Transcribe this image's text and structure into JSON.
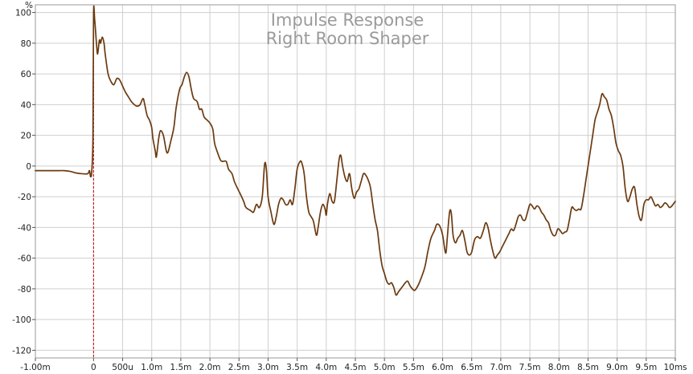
{
  "chart_data": {
    "type": "line",
    "title": "Impulse Response",
    "subtitle": "Right  Room  Shaper",
    "ylabel": "%",
    "xlabel": "",
    "xlim": [
      -1.0,
      10.0
    ],
    "ylim": [
      -125,
      105
    ],
    "grid": true,
    "x_ticks": [
      {
        "v": -1.0,
        "label": "-1.00m"
      },
      {
        "v": 0.0,
        "label": "0"
      },
      {
        "v": 0.5,
        "label": "500u"
      },
      {
        "v": 1.0,
        "label": "1.0m"
      },
      {
        "v": 1.5,
        "label": "1.5m"
      },
      {
        "v": 2.0,
        "label": "2.0m"
      },
      {
        "v": 2.5,
        "label": "2.5m"
      },
      {
        "v": 3.0,
        "label": "3.0m"
      },
      {
        "v": 3.5,
        "label": "3.5m"
      },
      {
        "v": 4.0,
        "label": "4.0m"
      },
      {
        "v": 4.5,
        "label": "4.5m"
      },
      {
        "v": 5.0,
        "label": "5.0m"
      },
      {
        "v": 5.5,
        "label": "5.5m"
      },
      {
        "v": 6.0,
        "label": "6.0m"
      },
      {
        "v": 6.5,
        "label": "6.5m"
      },
      {
        "v": 7.0,
        "label": "7.0m"
      },
      {
        "v": 7.5,
        "label": "7.5m"
      },
      {
        "v": 8.0,
        "label": "8.0m"
      },
      {
        "v": 8.5,
        "label": "8.5m"
      },
      {
        "v": 9.0,
        "label": "9.0m"
      },
      {
        "v": 9.5,
        "label": "9.5m"
      },
      {
        "v": 10.0,
        "label": "10ms"
      }
    ],
    "y_ticks": [
      {
        "v": 100,
        "label": "100"
      },
      {
        "v": 80,
        "label": "80"
      },
      {
        "v": 60,
        "label": "60"
      },
      {
        "v": 40,
        "label": "40"
      },
      {
        "v": 20,
        "label": "20"
      },
      {
        "v": 0,
        "label": "0"
      },
      {
        "v": -20,
        "label": "-20"
      },
      {
        "v": -40,
        "label": "-40"
      },
      {
        "v": -60,
        "label": "-60"
      },
      {
        "v": -80,
        "label": "-80"
      },
      {
        "v": -100,
        "label": "-100"
      },
      {
        "v": -120,
        "label": "-120"
      }
    ],
    "marker_x": 0.0,
    "colors": {
      "line": "#6b3a10",
      "marker": "#cc0000",
      "grid": "#cfcfcf",
      "title": "#9a9a9a"
    },
    "series": [
      {
        "points": [
          [
            -1.0,
            -3
          ],
          [
            -0.8,
            -3
          ],
          [
            -0.6,
            -3
          ],
          [
            -0.5,
            -3
          ],
          [
            -0.4,
            -3.5
          ],
          [
            -0.3,
            -4.5
          ],
          [
            -0.2,
            -5
          ],
          [
            -0.1,
            -5
          ],
          [
            -0.07,
            -3
          ],
          [
            -0.05,
            -7
          ],
          [
            -0.03,
            -3
          ],
          [
            -0.01,
            20
          ],
          [
            0.0,
            99
          ],
          [
            0.02,
            95
          ],
          [
            0.05,
            80
          ],
          [
            0.07,
            73
          ],
          [
            0.1,
            82
          ],
          [
            0.12,
            80
          ],
          [
            0.15,
            84
          ],
          [
            0.18,
            80
          ],
          [
            0.2,
            73
          ],
          [
            0.25,
            60
          ],
          [
            0.3,
            55
          ],
          [
            0.35,
            53
          ],
          [
            0.4,
            57
          ],
          [
            0.45,
            56
          ],
          [
            0.5,
            52
          ],
          [
            0.55,
            48
          ],
          [
            0.6,
            45
          ],
          [
            0.65,
            42
          ],
          [
            0.7,
            40
          ],
          [
            0.75,
            39
          ],
          [
            0.8,
            40
          ],
          [
            0.85,
            44
          ],
          [
            0.88,
            40
          ],
          [
            0.92,
            33
          ],
          [
            0.96,
            30
          ],
          [
            1.0,
            25
          ],
          [
            1.02,
            18
          ],
          [
            1.06,
            10
          ],
          [
            1.08,
            6
          ],
          [
            1.12,
            18
          ],
          [
            1.15,
            23
          ],
          [
            1.2,
            20
          ],
          [
            1.25,
            10
          ],
          [
            1.28,
            9
          ],
          [
            1.32,
            15
          ],
          [
            1.38,
            25
          ],
          [
            1.42,
            38
          ],
          [
            1.48,
            50
          ],
          [
            1.52,
            53
          ],
          [
            1.56,
            58
          ],
          [
            1.6,
            61
          ],
          [
            1.64,
            58
          ],
          [
            1.68,
            50
          ],
          [
            1.72,
            44
          ],
          [
            1.78,
            42
          ],
          [
            1.82,
            37
          ],
          [
            1.86,
            37
          ],
          [
            1.9,
            32
          ],
          [
            1.95,
            30
          ],
          [
            2.0,
            28
          ],
          [
            2.05,
            24
          ],
          [
            2.08,
            15
          ],
          [
            2.12,
            10
          ],
          [
            2.18,
            4
          ],
          [
            2.22,
            3
          ],
          [
            2.28,
            3
          ],
          [
            2.32,
            -2
          ],
          [
            2.38,
            -5
          ],
          [
            2.42,
            -10
          ],
          [
            2.48,
            -15
          ],
          [
            2.52,
            -18
          ],
          [
            2.58,
            -23
          ],
          [
            2.62,
            -27
          ],
          [
            2.7,
            -29
          ],
          [
            2.75,
            -30
          ],
          [
            2.8,
            -25
          ],
          [
            2.85,
            -27
          ],
          [
            2.9,
            -20
          ],
          [
            2.94,
            1
          ],
          [
            2.97,
            -2
          ],
          [
            3.0,
            -20
          ],
          [
            3.05,
            -30
          ],
          [
            3.1,
            -38
          ],
          [
            3.14,
            -33
          ],
          [
            3.18,
            -25
          ],
          [
            3.22,
            -21
          ],
          [
            3.26,
            -22
          ],
          [
            3.3,
            -25
          ],
          [
            3.34,
            -25
          ],
          [
            3.38,
            -22
          ],
          [
            3.42,
            -25
          ],
          [
            3.46,
            -15
          ],
          [
            3.5,
            -2
          ],
          [
            3.55,
            3
          ],
          [
            3.58,
            2
          ],
          [
            3.62,
            -5
          ],
          [
            3.66,
            -20
          ],
          [
            3.7,
            -30
          ],
          [
            3.74,
            -33
          ],
          [
            3.78,
            -36
          ],
          [
            3.83,
            -45
          ],
          [
            3.86,
            -40
          ],
          [
            3.9,
            -30
          ],
          [
            3.94,
            -25
          ],
          [
            3.98,
            -28
          ],
          [
            4.0,
            -32
          ],
          [
            4.02,
            -25
          ],
          [
            4.06,
            -18
          ],
          [
            4.1,
            -23
          ],
          [
            4.14,
            -23
          ],
          [
            4.18,
            -10
          ],
          [
            4.22,
            4
          ],
          [
            4.25,
            7
          ],
          [
            4.28,
            0
          ],
          [
            4.32,
            -7
          ],
          [
            4.36,
            -10
          ],
          [
            4.4,
            -5
          ],
          [
            4.44,
            -15
          ],
          [
            4.48,
            -21
          ],
          [
            4.52,
            -17
          ],
          [
            4.56,
            -15
          ],
          [
            4.6,
            -10
          ],
          [
            4.64,
            -5
          ],
          [
            4.68,
            -6
          ],
          [
            4.72,
            -9
          ],
          [
            4.76,
            -14
          ],
          [
            4.8,
            -25
          ],
          [
            4.84,
            -35
          ],
          [
            4.88,
            -42
          ],
          [
            4.92,
            -55
          ],
          [
            4.96,
            -65
          ],
          [
            5.0,
            -70
          ],
          [
            5.04,
            -75
          ],
          [
            5.08,
            -77
          ],
          [
            5.12,
            -76
          ],
          [
            5.16,
            -79
          ],
          [
            5.2,
            -84
          ],
          [
            5.24,
            -82
          ],
          [
            5.28,
            -80
          ],
          [
            5.32,
            -78
          ],
          [
            5.36,
            -76
          ],
          [
            5.4,
            -75
          ],
          [
            5.44,
            -78
          ],
          [
            5.48,
            -80
          ],
          [
            5.52,
            -81
          ],
          [
            5.56,
            -79
          ],
          [
            5.6,
            -76
          ],
          [
            5.66,
            -70
          ],
          [
            5.7,
            -65
          ],
          [
            5.75,
            -55
          ],
          [
            5.8,
            -47
          ],
          [
            5.86,
            -42
          ],
          [
            5.9,
            -38
          ],
          [
            5.95,
            -39
          ],
          [
            6.0,
            -45
          ],
          [
            6.04,
            -55
          ],
          [
            6.06,
            -56
          ],
          [
            6.08,
            -47
          ],
          [
            6.12,
            -30
          ],
          [
            6.15,
            -31
          ],
          [
            6.18,
            -45
          ],
          [
            6.22,
            -50
          ],
          [
            6.26,
            -47
          ],
          [
            6.3,
            -45
          ],
          [
            6.34,
            -42
          ],
          [
            6.38,
            -48
          ],
          [
            6.42,
            -56
          ],
          [
            6.46,
            -58
          ],
          [
            6.5,
            -56
          ],
          [
            6.55,
            -48
          ],
          [
            6.6,
            -46
          ],
          [
            6.65,
            -47
          ],
          [
            6.7,
            -42
          ],
          [
            6.74,
            -37
          ],
          [
            6.78,
            -40
          ],
          [
            6.82,
            -48
          ],
          [
            6.86,
            -55
          ],
          [
            6.9,
            -60
          ],
          [
            6.94,
            -58
          ],
          [
            6.98,
            -56
          ],
          [
            7.02,
            -53
          ],
          [
            7.06,
            -50
          ],
          [
            7.1,
            -47
          ],
          [
            7.14,
            -44
          ],
          [
            7.18,
            -41
          ],
          [
            7.22,
            -42
          ],
          [
            7.26,
            -38
          ],
          [
            7.3,
            -33
          ],
          [
            7.34,
            -32
          ],
          [
            7.38,
            -35
          ],
          [
            7.42,
            -35
          ],
          [
            7.46,
            -30
          ],
          [
            7.5,
            -25
          ],
          [
            7.54,
            -26
          ],
          [
            7.58,
            -28
          ],
          [
            7.62,
            -26
          ],
          [
            7.66,
            -27
          ],
          [
            7.7,
            -30
          ],
          [
            7.74,
            -32
          ],
          [
            7.78,
            -35
          ],
          [
            7.82,
            -37
          ],
          [
            7.86,
            -42
          ],
          [
            7.9,
            -45
          ],
          [
            7.94,
            -45
          ],
          [
            7.98,
            -41
          ],
          [
            8.02,
            -42
          ],
          [
            8.06,
            -44
          ],
          [
            8.1,
            -43
          ],
          [
            8.14,
            -42
          ],
          [
            8.18,
            -35
          ],
          [
            8.22,
            -27
          ],
          [
            8.26,
            -28
          ],
          [
            8.3,
            -29
          ],
          [
            8.34,
            -28
          ],
          [
            8.38,
            -28
          ],
          [
            8.42,
            -20
          ],
          [
            8.46,
            -10
          ],
          [
            8.5,
            0
          ],
          [
            8.54,
            10
          ],
          [
            8.58,
            20
          ],
          [
            8.62,
            30
          ],
          [
            8.66,
            35
          ],
          [
            8.7,
            40
          ],
          [
            8.74,
            47
          ],
          [
            8.78,
            45
          ],
          [
            8.82,
            43
          ],
          [
            8.86,
            37
          ],
          [
            8.9,
            33
          ],
          [
            8.94,
            25
          ],
          [
            8.98,
            15
          ],
          [
            9.02,
            10
          ],
          [
            9.06,
            7
          ],
          [
            9.1,
            0
          ],
          [
            9.14,
            -15
          ],
          [
            9.18,
            -23
          ],
          [
            9.22,
            -20
          ],
          [
            9.26,
            -15
          ],
          [
            9.3,
            -14
          ],
          [
            9.34,
            -25
          ],
          [
            9.38,
            -33
          ],
          [
            9.42,
            -35
          ],
          [
            9.46,
            -25
          ],
          [
            9.5,
            -22
          ],
          [
            9.54,
            -22
          ],
          [
            9.58,
            -20
          ],
          [
            9.62,
            -23
          ],
          [
            9.66,
            -26
          ],
          [
            9.7,
            -25
          ],
          [
            9.74,
            -27
          ],
          [
            9.78,
            -26
          ],
          [
            9.82,
            -24
          ],
          [
            9.86,
            -25
          ],
          [
            9.9,
            -27
          ],
          [
            9.94,
            -26
          ],
          [
            9.98,
            -24
          ],
          [
            10.0,
            -23
          ]
        ]
      }
    ]
  }
}
